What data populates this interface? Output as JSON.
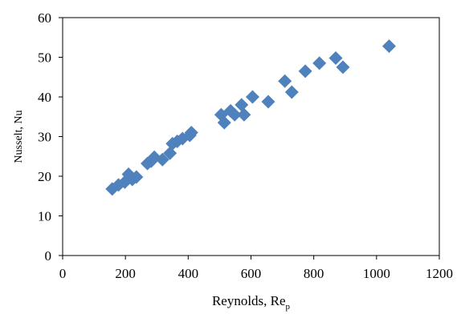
{
  "chart_data": {
    "type": "scatter",
    "xlabel": "Reynolds, Re",
    "xlabel_subscript": "p",
    "ylabel": "Nusselt, Nu",
    "xlim": [
      0,
      1200
    ],
    "ylim": [
      0,
      60
    ],
    "xticks": [
      0,
      200,
      400,
      600,
      800,
      1000,
      1200
    ],
    "yticks": [
      0,
      10,
      20,
      30,
      40,
      50,
      60
    ],
    "marker": "diamond",
    "marker_color": "#4F81BD",
    "grid": false,
    "series": [
      {
        "points": [
          [
            158,
            16.8
          ],
          [
            178,
            17.8
          ],
          [
            198,
            18.5
          ],
          [
            210,
            20.5
          ],
          [
            222,
            19.2
          ],
          [
            235,
            19.8
          ],
          [
            270,
            23.2
          ],
          [
            282,
            23.8
          ],
          [
            292,
            24.8
          ],
          [
            318,
            24.2
          ],
          [
            342,
            25.8
          ],
          [
            350,
            28.2
          ],
          [
            365,
            28.8
          ],
          [
            382,
            29.5
          ],
          [
            405,
            30.3
          ],
          [
            410,
            31.0
          ],
          [
            505,
            35.5
          ],
          [
            515,
            33.5
          ],
          [
            535,
            36.5
          ],
          [
            548,
            35.5
          ],
          [
            570,
            38.0
          ],
          [
            578,
            35.5
          ],
          [
            605,
            40.0
          ],
          [
            655,
            38.8
          ],
          [
            708,
            44.0
          ],
          [
            730,
            41.2
          ],
          [
            773,
            46.5
          ],
          [
            818,
            48.5
          ],
          [
            870,
            49.8
          ],
          [
            893,
            47.5
          ],
          [
            1040,
            52.8
          ]
        ]
      }
    ]
  }
}
